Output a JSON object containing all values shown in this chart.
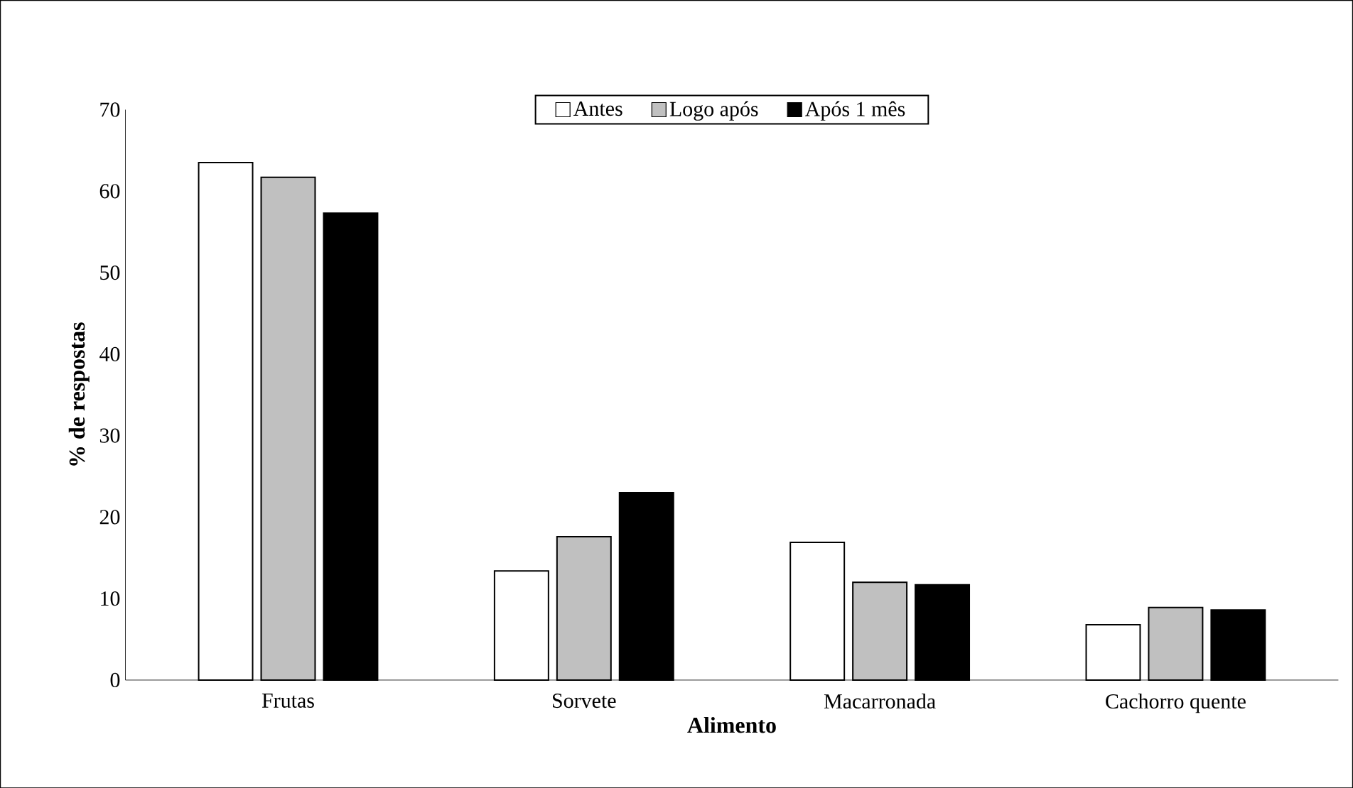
{
  "chart_data": {
    "type": "bar",
    "xlabel": "Alimento",
    "ylabel": "% de respostas",
    "categories": [
      "Frutas",
      "Sorvete",
      "Macarronada",
      "Cachorro quente"
    ],
    "series": [
      {
        "name": "Antes",
        "color": "#ffffff",
        "values": [
          63.5,
          13.4,
          16.9,
          6.8
        ]
      },
      {
        "name": "Logo após",
        "color": "#c0c0c0",
        "values": [
          61.7,
          17.6,
          12.0,
          8.9
        ]
      },
      {
        "name": "Após 1 mês",
        "color": "#000000",
        "values": [
          57.3,
          23.0,
          11.7,
          8.6
        ]
      }
    ],
    "ylim": [
      0,
      70
    ],
    "yticks": [
      0,
      10,
      20,
      30,
      40,
      50,
      60,
      70
    ],
    "grid": false,
    "legend": "top"
  }
}
